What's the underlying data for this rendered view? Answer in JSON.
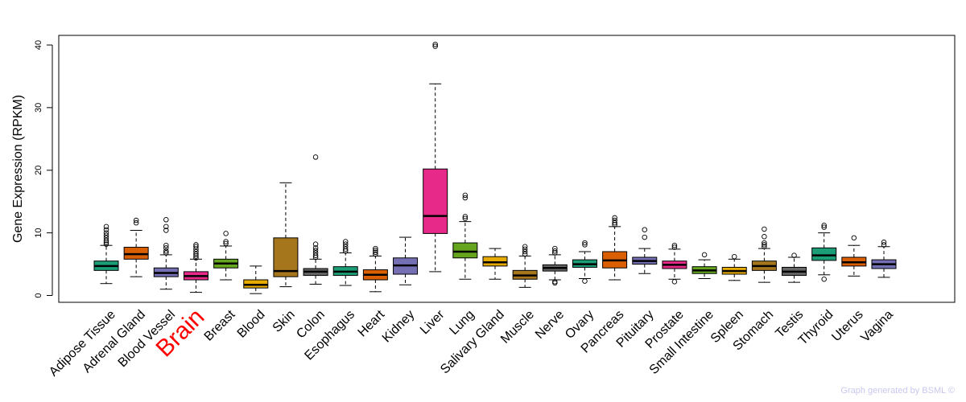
{
  "chart_data": {
    "type": "boxplot",
    "title": "",
    "ylabel": "Gene Expression (RPKM)",
    "xlabel": "",
    "ylim": [
      0,
      42
    ],
    "yticks": [
      0,
      10,
      20,
      30,
      40
    ],
    "highlight_category": "Brain",
    "highlight_color": "#ff0000",
    "categories": [
      {
        "label": "Adipose Tissue",
        "color": "#1b9e77",
        "q1": 4.0,
        "median": 4.7,
        "q3": 5.5,
        "whisker_low": 1.9,
        "whisker_high": 8.0,
        "outliers": [
          8.2,
          8.5,
          8.8,
          9.2,
          9.6,
          10.0,
          10.5,
          11.0
        ]
      },
      {
        "label": "Adrenal Gland",
        "color": "#d95f02",
        "q1": 5.8,
        "median": 6.6,
        "q3": 7.7,
        "whisker_low": 3.0,
        "whisker_high": 10.4,
        "outliers": [
          11.6,
          12.0
        ]
      },
      {
        "label": "Blood Vessel",
        "color": "#7570b3",
        "q1": 3.0,
        "median": 3.6,
        "q3": 4.4,
        "whisker_low": 1.0,
        "whisker_high": 6.5,
        "outliers": [
          6.8,
          7.1,
          7.6,
          8.0,
          10.4,
          11.0,
          12.1
        ]
      },
      {
        "label": "Brain",
        "color": "#e7298a",
        "q1": 2.5,
        "median": 3.1,
        "q3": 3.8,
        "whisker_low": 0.5,
        "whisker_high": 5.8,
        "outliers": [
          6.0,
          6.3,
          6.6,
          7.0,
          7.4,
          7.8,
          8.1
        ]
      },
      {
        "label": "Breast",
        "color": "#66a61e",
        "q1": 4.4,
        "median": 5.1,
        "q3": 5.8,
        "whisker_low": 2.5,
        "whisker_high": 7.9,
        "outliers": [
          8.3,
          8.6,
          9.9
        ]
      },
      {
        "label": "Blood",
        "color": "#e6ab02",
        "q1": 1.2,
        "median": 1.7,
        "q3": 2.5,
        "whisker_low": 0.3,
        "whisker_high": 4.7,
        "outliers": []
      },
      {
        "label": "Skin",
        "color": "#a6761d",
        "q1": 3.0,
        "median": 3.9,
        "q3": 9.2,
        "whisker_low": 1.4,
        "whisker_high": 18.0,
        "outliers": []
      },
      {
        "label": "Colon",
        "color": "#666666",
        "q1": 3.2,
        "median": 3.8,
        "q3": 4.3,
        "whisker_low": 1.8,
        "whisker_high": 5.8,
        "outliers": [
          6.1,
          6.4,
          6.8,
          7.2,
          7.6,
          8.2,
          22.1
        ]
      },
      {
        "label": "Esophagus",
        "color": "#1b9e77",
        "q1": 3.2,
        "median": 3.8,
        "q3": 4.6,
        "whisker_low": 1.6,
        "whisker_high": 6.8,
        "outliers": [
          7.1,
          7.4,
          7.8,
          8.2,
          8.6
        ]
      },
      {
        "label": "Heart",
        "color": "#d95f02",
        "q1": 2.5,
        "median": 3.3,
        "q3": 4.1,
        "whisker_low": 0.6,
        "whisker_high": 6.3,
        "outliers": [
          6.6,
          6.9,
          7.2,
          7.5
        ]
      },
      {
        "label": "Kidney",
        "color": "#7570b3",
        "q1": 3.4,
        "median": 4.8,
        "q3": 6.0,
        "whisker_low": 1.7,
        "whisker_high": 9.3,
        "outliers": []
      },
      {
        "label": "Liver",
        "color": "#e7298a",
        "q1": 9.9,
        "median": 12.7,
        "q3": 20.2,
        "whisker_low": 3.8,
        "whisker_high": 33.8,
        "outliers": [
          39.8,
          40.1
        ]
      },
      {
        "label": "Lung",
        "color": "#66a61e",
        "q1": 6.0,
        "median": 7.0,
        "q3": 8.4,
        "whisker_low": 2.6,
        "whisker_high": 11.8,
        "outliers": [
          12.3,
          12.6,
          15.6,
          16.0
        ]
      },
      {
        "label": "Salivary Gland",
        "color": "#e6ab02",
        "q1": 4.7,
        "median": 5.3,
        "q3": 6.2,
        "whisker_low": 2.6,
        "whisker_high": 7.5,
        "outliers": []
      },
      {
        "label": "Muscle",
        "color": "#a6761d",
        "q1": 2.6,
        "median": 3.2,
        "q3": 4.0,
        "whisker_low": 1.3,
        "whisker_high": 6.3,
        "outliers": [
          6.6,
          7.0,
          7.4,
          7.8
        ]
      },
      {
        "label": "Nerve",
        "color": "#666666",
        "q1": 3.9,
        "median": 4.4,
        "q3": 4.9,
        "whisker_low": 2.5,
        "whisker_high": 6.5,
        "outliers": [
          2.0,
          2.2,
          6.8,
          7.1,
          7.5
        ]
      },
      {
        "label": "Ovary",
        "color": "#1b9e77",
        "q1": 4.5,
        "median": 5.0,
        "q3": 5.7,
        "whisker_low": 2.7,
        "whisker_high": 7.0,
        "outliers": [
          2.3,
          8.1,
          8.4
        ]
      },
      {
        "label": "Pancreas",
        "color": "#d95f02",
        "q1": 4.4,
        "median": 5.6,
        "q3": 7.0,
        "whisker_low": 2.5,
        "whisker_high": 11.0,
        "outliers": [
          11.3,
          11.6,
          12.0,
          12.4
        ]
      },
      {
        "label": "Pituitary",
        "color": "#7570b3",
        "q1": 5.0,
        "median": 5.5,
        "q3": 6.1,
        "whisker_low": 3.5,
        "whisker_high": 7.5,
        "outliers": [
          9.3,
          10.5
        ]
      },
      {
        "label": "Prostate",
        "color": "#e7298a",
        "q1": 4.3,
        "median": 4.9,
        "q3": 5.5,
        "whisker_low": 2.6,
        "whisker_high": 7.4,
        "outliers": [
          2.2,
          7.7,
          8.0
        ]
      },
      {
        "label": "Small Intestine",
        "color": "#66a61e",
        "q1": 3.5,
        "median": 4.0,
        "q3": 4.6,
        "whisker_low": 2.7,
        "whisker_high": 5.7,
        "outliers": [
          6.5
        ]
      },
      {
        "label": "Spleen",
        "color": "#e6ab02",
        "q1": 3.4,
        "median": 3.9,
        "q3": 4.5,
        "whisker_low": 2.4,
        "whisker_high": 5.8,
        "outliers": [
          6.2
        ]
      },
      {
        "label": "Stomach",
        "color": "#a6761d",
        "q1": 4.0,
        "median": 4.7,
        "q3": 5.5,
        "whisker_low": 2.1,
        "whisker_high": 7.5,
        "outliers": [
          7.8,
          8.1,
          8.4,
          9.4,
          10.6
        ]
      },
      {
        "label": "Testis",
        "color": "#666666",
        "q1": 3.2,
        "median": 3.8,
        "q3": 4.5,
        "whisker_low": 2.1,
        "whisker_high": 6.1,
        "outliers": [
          6.4
        ]
      },
      {
        "label": "Thyroid",
        "color": "#1b9e77",
        "q1": 5.6,
        "median": 6.4,
        "q3": 7.6,
        "whisker_low": 3.3,
        "whisker_high": 10.0,
        "outliers": [
          2.6,
          10.9,
          11.2
        ]
      },
      {
        "label": "Uterus",
        "color": "#d95f02",
        "q1": 4.7,
        "median": 5.3,
        "q3": 6.1,
        "whisker_low": 3.1,
        "whisker_high": 8.0,
        "outliers": [
          9.2
        ]
      },
      {
        "label": "Vagina",
        "color": "#7570b3",
        "q1": 4.3,
        "median": 5.0,
        "q3": 5.7,
        "whisker_low": 2.9,
        "whisker_high": 7.8,
        "outliers": [
          8.1,
          8.5
        ]
      }
    ]
  },
  "footer": {
    "text": "Graph generated by BSML ©",
    "color": "#c8c8ef"
  }
}
